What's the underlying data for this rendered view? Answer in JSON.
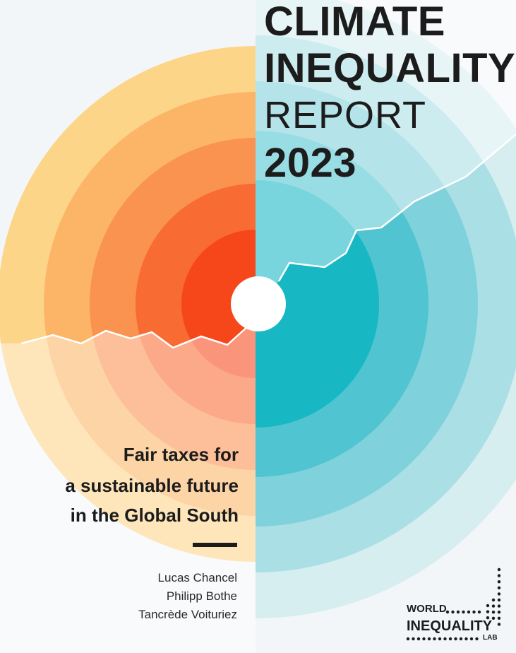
{
  "title": {
    "line1": "CLIMATE",
    "line2": "INEQUALITY",
    "line3": "REPORT",
    "line4": "2023"
  },
  "subtitle": {
    "line1": "Fair taxes for",
    "line2": "a sustainable future",
    "line3": "in the Global South"
  },
  "authors": [
    "Lucas Chancel",
    "Philipp Bothe",
    "Tancrède Voituriez"
  ],
  "logo": {
    "word1": "WORLD",
    "word2": "INEQUALITY",
    "word3": "LAB"
  },
  "colors": {
    "background": "#f3f6f8",
    "warm_rings": [
      "#fdd589",
      "#fcb567",
      "#fa9250",
      "#f86b33",
      "#f6471a"
    ],
    "cool_rings": [
      "#d7eef1",
      "#aadfe6",
      "#7fd1db",
      "#50c4d0",
      "#17b7c4"
    ],
    "text": "#1c1c1c"
  }
}
